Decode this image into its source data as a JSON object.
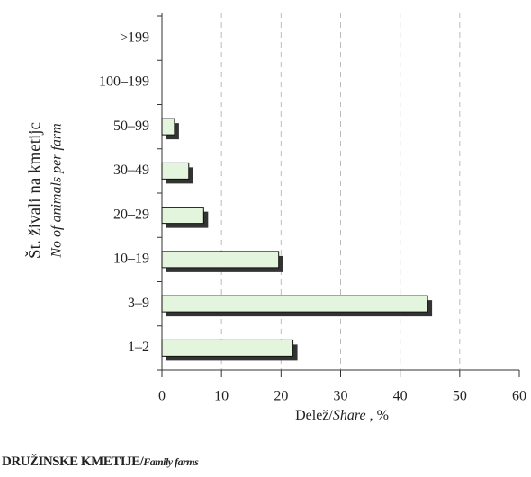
{
  "chart_data": {
    "type": "bar",
    "orientation": "horizontal",
    "categories": [
      ">199",
      "100–199",
      "50–99",
      "30–49",
      "20–29",
      "10–19",
      "3–9",
      "1–2"
    ],
    "values": [
      0,
      0,
      2.1,
      4.5,
      7,
      19.6,
      44.6,
      22
    ],
    "color": "#e3f5dc",
    "shadow_color": "#333333",
    "xlim": [
      0,
      60
    ],
    "xticks": [
      0,
      10,
      20,
      30,
      40,
      50,
      60
    ],
    "grid": true,
    "ylabel": "Št. živali na kmetijc",
    "ylabel2": "No of animals per farm",
    "xlabel": {
      "main": "Delež/",
      "italic": "Share",
      "suffix": " , %"
    },
    "footer": {
      "main": "DRUŽINSKE KMETIJE/",
      "italic": "Family farms"
    }
  }
}
